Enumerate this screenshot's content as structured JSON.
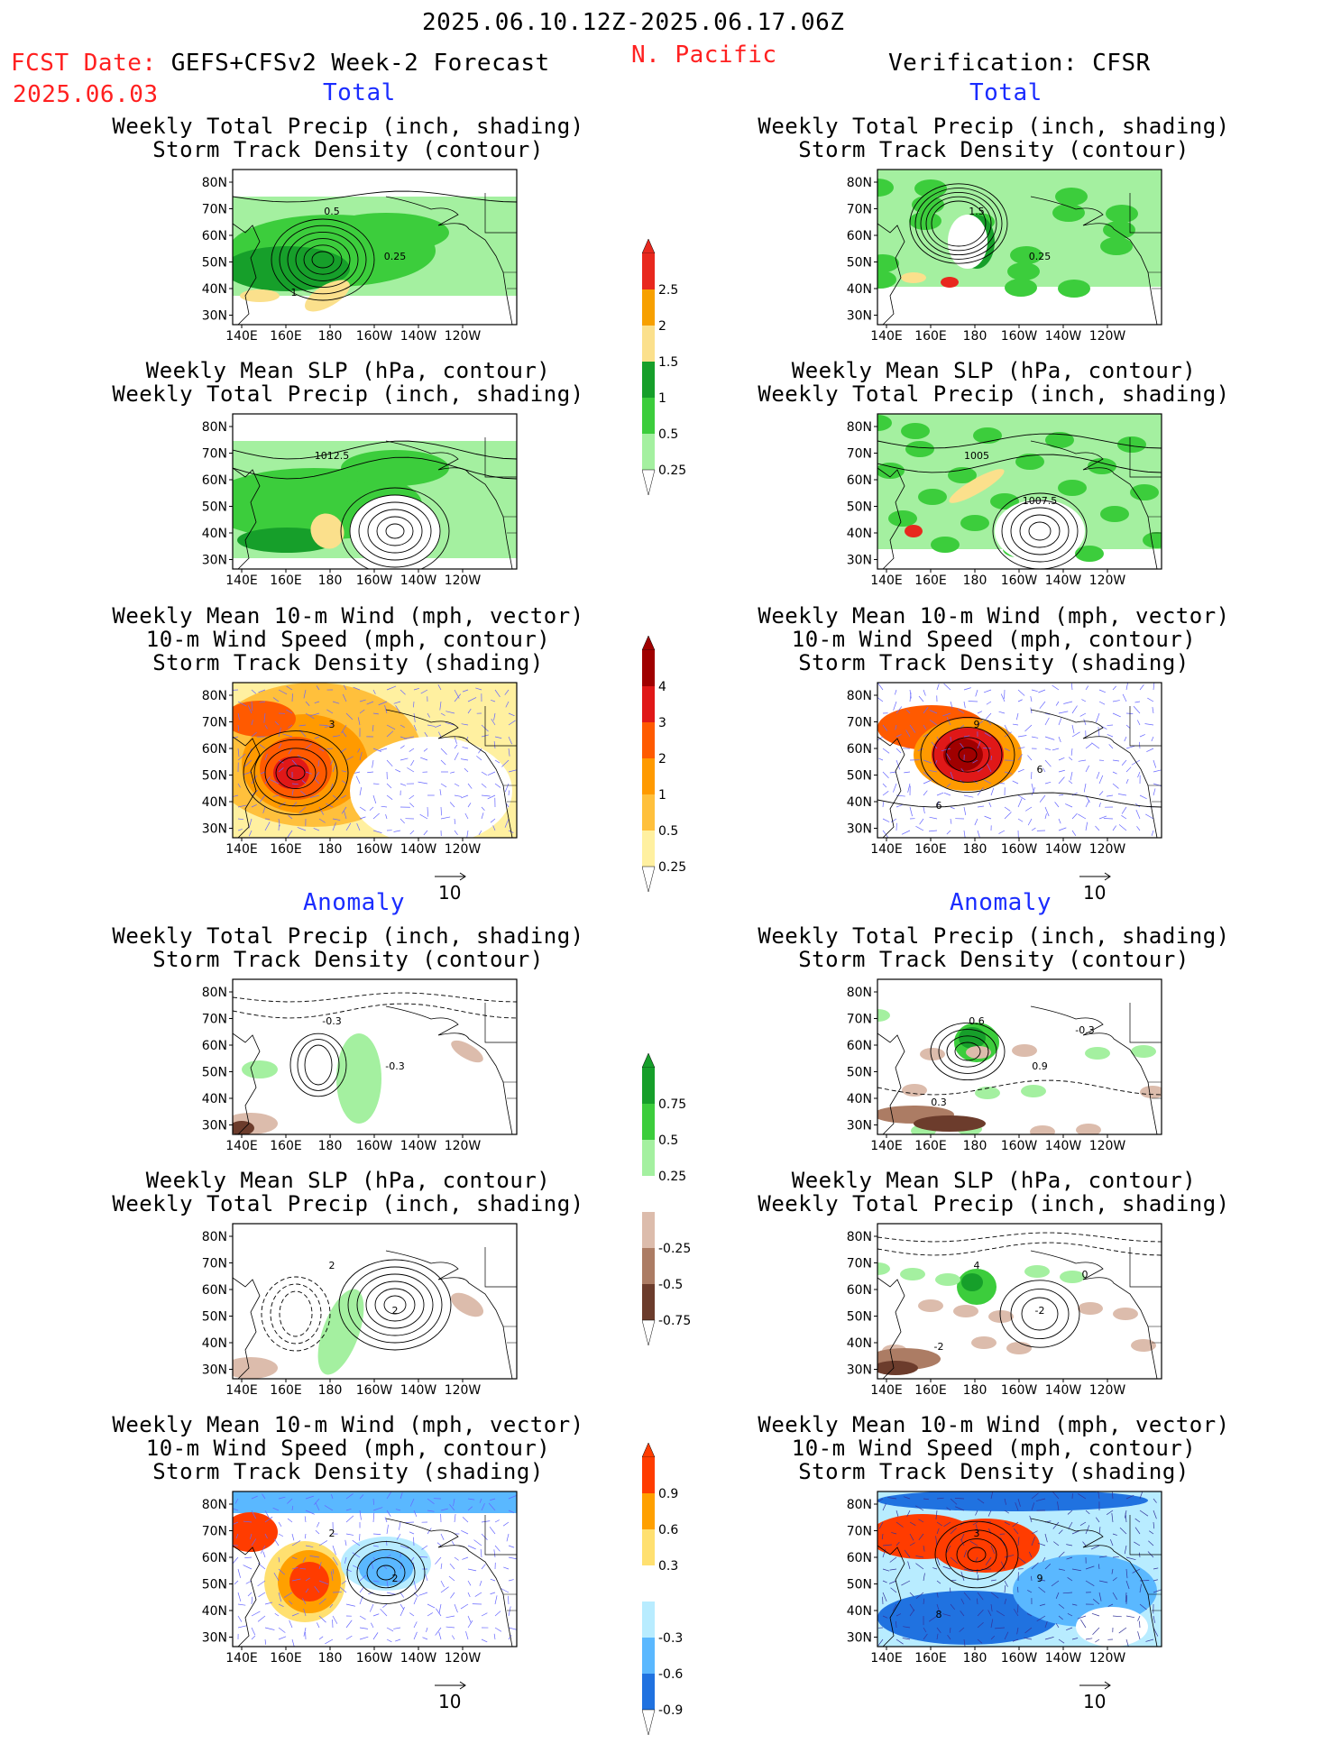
{
  "header": {
    "date_range": "2025.06.10.12Z-2025.06.17.06Z",
    "region": "N. Pacific",
    "fcst_label": "FCST Date:",
    "fcst_model": "GEFS+CFSv2 Week-2 Forecast",
    "fcst_date": "2025.06.03",
    "verification": "Verification: CFSR"
  },
  "sections": {
    "total": "Total",
    "anomaly": "Anomaly"
  },
  "titles": {
    "precip_storm": [
      "Weekly Total Precip (inch, shading)",
      "Storm Track Density (contour)"
    ],
    "slp_precip": [
      "Weekly Mean SLP (hPa, contour)",
      "Weekly Total Precip (inch, shading)"
    ],
    "wind_storm": [
      "Weekly Mean 10-m Wind (mph, vector)",
      "10-m Wind Speed (mph, contour)",
      "Storm Track Density (shading)"
    ]
  },
  "axes": {
    "lat_ticks": [
      "80N",
      "70N",
      "60N",
      "50N",
      "40N",
      "30N"
    ],
    "lon_ticks": [
      "140E",
      "160E",
      "180",
      "160W",
      "140W",
      "120W"
    ],
    "vector_ref": "10"
  },
  "contour_labels": {
    "fcst_total_precip": [
      "0.5",
      "0.25",
      "1"
    ],
    "obs_total_precip": [
      "1.5",
      "0.25"
    ],
    "fcst_total_slp": [
      "1012.5"
    ],
    "obs_total_slp": [
      "1005",
      "1007.5"
    ],
    "fcst_total_wind": [
      "3"
    ],
    "obs_total_wind": [
      "9",
      "6",
      "6"
    ],
    "fcst_anom_precip": [
      "-0.3",
      "-0.3"
    ],
    "obs_anom_precip": [
      "0.6",
      "0.9",
      "0.3",
      "-0.3"
    ],
    "fcst_anom_slp": [
      "2",
      "2"
    ],
    "obs_anom_slp": [
      "4",
      "-2",
      "-2",
      "0"
    ],
    "fcst_anom_wind": [
      "2",
      "2"
    ],
    "obs_anom_wind": [
      "3",
      "9",
      "8"
    ]
  },
  "colorbars": {
    "precip_total": {
      "labels": [
        "2.5",
        "2",
        "1.5",
        "1",
        "0.5",
        "0.25"
      ],
      "colors": [
        "#e8281e",
        "#f7a000",
        "#fbe08c",
        "#169f2a",
        "#3ccd3c",
        "#a4f0a0"
      ]
    },
    "storm_total": {
      "labels": [
        "4",
        "3",
        "2",
        "1",
        "0.5",
        "0.25"
      ],
      "colors": [
        "#a00000",
        "#e01818",
        "#ff5a00",
        "#ff9a00",
        "#ffc03c",
        "#fff0a0"
      ]
    },
    "precip_anom": {
      "labels": [
        "0.75",
        "0.5",
        "0.25",
        "-0.25",
        "-0.5",
        "-0.75"
      ],
      "colors": [
        "#169f2a",
        "#3ccd3c",
        "#a4f0a0",
        "#ffffff",
        "#dcbcac",
        "#ac7c64",
        "#6c3c2c"
      ]
    },
    "storm_anom": {
      "labels": [
        "0.9",
        "0.6",
        "0.3",
        "-0.3",
        "-0.6",
        "-0.9"
      ],
      "colors": [
        "#ff3c00",
        "#ffa000",
        "#ffe070",
        "#ffffff",
        "#b8ecff",
        "#5ab8ff",
        "#2072e0"
      ]
    }
  }
}
